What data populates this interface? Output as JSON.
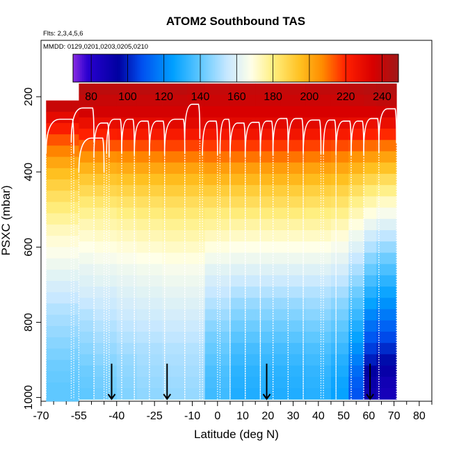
{
  "chart_data": {
    "type": "heatmap",
    "title": "ATOM2 Southbound TAS",
    "subtitle_flights": "Flts: 2,3,4,5,6",
    "subtitle_dates": "MMDD: 0129,0201,0203,0205,0210",
    "xlabel": "Latitude (deg N)",
    "ylabel": "PSXC (mbar)",
    "xlim": [
      -70,
      85
    ],
    "ylim": [
      1010,
      50
    ],
    "x_ticks": [
      -70,
      -55,
      -40,
      -25,
      -10,
      0,
      10,
      20,
      30,
      40,
      50,
      60,
      70,
      80
    ],
    "x_ticks_minor": [
      -65,
      -60,
      -50,
      -45,
      -35,
      -30,
      -20,
      -15,
      -5,
      5,
      15,
      25,
      35,
      45,
      55,
      65,
      75,
      85
    ],
    "y_ticks": [
      200,
      400,
      600,
      800,
      1000
    ],
    "colorbar": {
      "min": 70,
      "max": 249,
      "ticks": [
        80,
        100,
        120,
        140,
        160,
        180,
        200,
        220,
        240
      ],
      "stops": [
        {
          "v": 70,
          "c": "#8a2be2"
        },
        {
          "v": 78,
          "c": "#2a00d0"
        },
        {
          "v": 95,
          "c": "#0000a0"
        },
        {
          "v": 108,
          "c": "#0050f0"
        },
        {
          "v": 125,
          "c": "#00a0ff"
        },
        {
          "v": 140,
          "c": "#5fc8ff"
        },
        {
          "v": 155,
          "c": "#c8e8ff"
        },
        {
          "v": 168,
          "c": "#ffffe8"
        },
        {
          "v": 180,
          "c": "#ffef80"
        },
        {
          "v": 195,
          "c": "#ffc020"
        },
        {
          "v": 207,
          "c": "#ff8c00"
        },
        {
          "v": 220,
          "c": "#ff2000"
        },
        {
          "v": 235,
          "c": "#d80000"
        },
        {
          "v": 249,
          "c": "#a01818"
        }
      ]
    },
    "profile_segments": [
      {
        "lat": [
          -68,
          -57
        ],
        "p_top": 260
      },
      {
        "lat": [
          -58,
          -49
        ],
        "p_top": 230
      },
      {
        "lat": [
          -55,
          -45
        ],
        "p_top": 310
      },
      {
        "lat": [
          -49,
          -43
        ],
        "p_top": 270
      },
      {
        "lat": [
          -44,
          -38
        ],
        "p_top": 260
      },
      {
        "lat": [
          -38,
          -33
        ],
        "p_top": 260
      },
      {
        "lat": [
          -33,
          -27
        ],
        "p_top": 265
      },
      {
        "lat": [
          -27,
          -21
        ],
        "p_top": 265
      },
      {
        "lat": [
          -21,
          -13
        ],
        "p_top": 260
      },
      {
        "lat": [
          -13,
          -7
        ],
        "p_top": 220
      },
      {
        "lat": [
          -6,
          0
        ],
        "p_top": 265
      },
      {
        "lat": [
          1,
          5
        ],
        "p_top": 260
      },
      {
        "lat": [
          5,
          11
        ],
        "p_top": 270
      },
      {
        "lat": [
          11,
          17
        ],
        "p_top": 268
      },
      {
        "lat": [
          17,
          22
        ],
        "p_top": 265
      },
      {
        "lat": [
          22,
          28
        ],
        "p_top": 258
      },
      {
        "lat": [
          28,
          34
        ],
        "p_top": 258
      },
      {
        "lat": [
          34,
          41
        ],
        "p_top": 262
      },
      {
        "lat": [
          42,
          47
        ],
        "p_top": 262
      },
      {
        "lat": [
          47,
          53
        ],
        "p_top": 265
      },
      {
        "lat": [
          53,
          58
        ],
        "p_top": 265
      },
      {
        "lat": [
          58,
          64
        ],
        "p_top": 258
      },
      {
        "lat": [
          64,
          71
        ],
        "p_top": 232
      }
    ],
    "arrows_lat": [
      -42,
      -20,
      19.5,
      60.5
    ],
    "columns": [
      {
        "lat": [
          -68,
          -58
        ],
        "p_top": 210,
        "values": [
          239,
          230,
          222,
          214,
          208,
          201,
          195,
          190,
          185,
          181,
          177,
          173,
          170,
          167,
          164,
          161,
          158,
          155,
          152,
          150,
          148,
          146,
          144,
          142,
          141,
          140,
          140,
          140
        ]
      },
      {
        "lat": [
          -58,
          -55
        ],
        "p_top": 210,
        "values": [
          239,
          230,
          222,
          214,
          208,
          201,
          195,
          190,
          185,
          181,
          177,
          173,
          170,
          167,
          164,
          161,
          158,
          155,
          152,
          150,
          148,
          146,
          144,
          142,
          141,
          140,
          140,
          140
        ]
      },
      {
        "lat": [
          -55,
          -49
        ],
        "p_top": 165,
        "values": [
          243,
          240,
          236,
          228,
          220,
          212,
          205,
          198,
          192,
          187,
          182,
          178,
          174,
          171,
          168,
          165,
          162,
          160,
          158,
          155,
          152,
          150,
          148,
          146,
          144,
          142,
          141,
          140
        ]
      },
      {
        "lat": [
          -49,
          -40
        ],
        "p_top": 165,
        "values": [
          242,
          239,
          236,
          229,
          221,
          214,
          206,
          199,
          193,
          188,
          183,
          178,
          175,
          172,
          169,
          166,
          163,
          161,
          158,
          156,
          154,
          152,
          150,
          148,
          146,
          144,
          143,
          142
        ]
      },
      {
        "lat": [
          -40,
          -32
        ],
        "p_top": 165,
        "values": [
          242,
          239,
          236,
          230,
          222,
          214,
          207,
          200,
          194,
          189,
          184,
          180,
          176,
          173,
          170,
          167,
          164,
          162,
          160,
          158,
          156,
          154,
          152,
          150,
          148,
          147,
          146,
          145
        ]
      },
      {
        "lat": [
          -32,
          -22
        ],
        "p_top": 165,
        "values": [
          242,
          239,
          236,
          230,
          223,
          215,
          208,
          201,
          195,
          190,
          185,
          181,
          177,
          174,
          171,
          168,
          165,
          163,
          161,
          159,
          157,
          155,
          153,
          151,
          150,
          149,
          148,
          147
        ]
      },
      {
        "lat": [
          -22,
          -12
        ],
        "p_top": 165,
        "values": [
          242,
          239,
          236,
          231,
          223,
          216,
          209,
          202,
          196,
          191,
          186,
          182,
          178,
          175,
          172,
          169,
          166,
          164,
          162,
          160,
          158,
          156,
          154,
          152,
          151,
          150,
          149,
          148
        ]
      },
      {
        "lat": [
          -12,
          -5
        ],
        "p_top": 165,
        "values": [
          241,
          238,
          235,
          231,
          224,
          216,
          209,
          202,
          196,
          191,
          186,
          182,
          178,
          175,
          172,
          169,
          166,
          164,
          162,
          160,
          158,
          156,
          154,
          152,
          151,
          150,
          149,
          148
        ]
      },
      {
        "lat": [
          -5,
          5
        ],
        "p_top": 165,
        "values": [
          240,
          238,
          235,
          231,
          224,
          217,
          210,
          203,
          197,
          191,
          186,
          181,
          177,
          173,
          169,
          165,
          161,
          158,
          155,
          152,
          149,
          146,
          143,
          141,
          139,
          137,
          136,
          135
        ]
      },
      {
        "lat": [
          5,
          15
        ],
        "p_top": 165,
        "values": [
          240,
          238,
          235,
          231,
          225,
          217,
          210,
          203,
          197,
          191,
          186,
          181,
          176,
          172,
          168,
          164,
          160,
          156,
          152,
          148,
          145,
          142,
          139,
          136,
          134,
          132,
          131,
          130
        ]
      },
      {
        "lat": [
          15,
          25
        ],
        "p_top": 165,
        "values": [
          240,
          238,
          235,
          231,
          225,
          217,
          210,
          203,
          197,
          191,
          186,
          181,
          176,
          172,
          168,
          164,
          160,
          156,
          152,
          148,
          145,
          142,
          139,
          136,
          134,
          132,
          131,
          130
        ]
      },
      {
        "lat": [
          25,
          35
        ],
        "p_top": 165,
        "values": [
          240,
          238,
          235,
          231,
          225,
          217,
          210,
          203,
          197,
          191,
          186,
          181,
          176,
          172,
          168,
          164,
          160,
          156,
          152,
          148,
          145,
          142,
          139,
          136,
          134,
          132,
          131,
          130
        ]
      },
      {
        "lat": [
          35,
          45
        ],
        "p_top": 165,
        "values": [
          241,
          238,
          235,
          231,
          224,
          216,
          209,
          202,
          196,
          190,
          185,
          180,
          176,
          172,
          168,
          164,
          160,
          156,
          152,
          149,
          146,
          143,
          140,
          137,
          135,
          133,
          132,
          131
        ]
      },
      {
        "lat": [
          45,
          52
        ],
        "p_top": 165,
        "values": [
          241,
          238,
          235,
          230,
          223,
          215,
          208,
          201,
          195,
          189,
          184,
          179,
          174,
          170,
          166,
          162,
          158,
          154,
          150,
          146,
          143,
          140,
          137,
          134,
          131,
          129,
          127,
          126
        ]
      },
      {
        "lat": [
          52,
          58
        ],
        "p_top": 165,
        "values": [
          242,
          239,
          235,
          229,
          221,
          213,
          205,
          198,
          191,
          185,
          179,
          174,
          169,
          164,
          160,
          155,
          151,
          147,
          142,
          138,
          134,
          130,
          126,
          122,
          118,
          114,
          111,
          109
        ]
      },
      {
        "lat": [
          58,
          63
        ],
        "p_top": 165,
        "values": [
          243,
          240,
          235,
          228,
          220,
          211,
          203,
          195,
          188,
          181,
          175,
          169,
          163,
          157,
          152,
          146,
          141,
          136,
          131,
          126,
          120,
          115,
          110,
          105,
          100,
          95,
          92,
          90
        ]
      },
      {
        "lat": [
          63,
          71
        ],
        "p_top": 165,
        "values": [
          244,
          241,
          236,
          228,
          219,
          210,
          202,
          194,
          186,
          179,
          172,
          166,
          160,
          154,
          148,
          142,
          137,
          132,
          127,
          122,
          117,
          112,
          107,
          102,
          97,
          92,
          88,
          86
        ]
      }
    ],
    "cell_dp": 30
  }
}
